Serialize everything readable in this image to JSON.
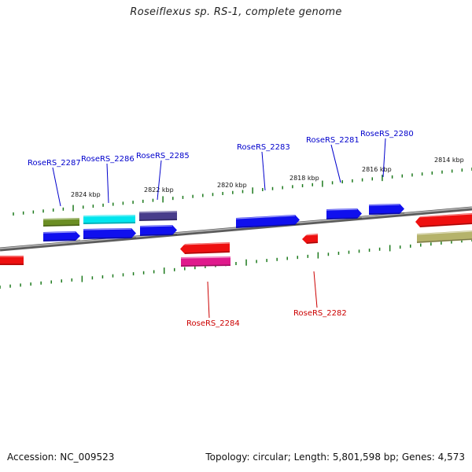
{
  "title": "Roseiflexus sp. RS-1, complete genome",
  "footer": {
    "accession": "Accession: NC_009523",
    "summary": "Topology: circular; Length: 5,801,598 bp; Genes: 4,573"
  },
  "ticks": [
    {
      "label": "2824 kbp",
      "pos": 2824
    },
    {
      "label": "2822 kbp",
      "pos": 2822
    },
    {
      "label": "2820 kbp",
      "pos": 2820
    },
    {
      "label": "2818 kbp",
      "pos": 2818
    },
    {
      "label": "2816 kbp",
      "pos": 2816
    },
    {
      "label": "2814 kbp",
      "pos": 2814
    }
  ],
  "gene_labels": [
    {
      "name": "RoseRS_2287",
      "strand": "plus",
      "color": "#0000cc"
    },
    {
      "name": "RoseRS_2286",
      "strand": "plus",
      "color": "#0000cc"
    },
    {
      "name": "RoseRS_2285",
      "strand": "plus",
      "color": "#0000cc"
    },
    {
      "name": "RoseRS_2283",
      "strand": "plus",
      "color": "#0000cc"
    },
    {
      "name": "RoseRS_2281",
      "strand": "plus",
      "color": "#0000cc"
    },
    {
      "name": "RoseRS_2280",
      "strand": "plus",
      "color": "#0000cc"
    },
    {
      "name": "RoseRS_2284",
      "strand": "minus",
      "color": "#cc0000"
    },
    {
      "name": "RoseRS_2282",
      "strand": "minus",
      "color": "#cc0000"
    }
  ],
  "colors": {
    "backbone": "#7a7a7a",
    "tick": "#1d7a1d",
    "plus_strand": "#1010ee",
    "minus_strand": "#ee1010",
    "cog_olive": "#6b8e23",
    "cog_cyan": "#00e5ee",
    "cog_slate": "#483d8b",
    "cog_magenta": "#e0198c",
    "cog_khaki": "#b5b36b"
  }
}
